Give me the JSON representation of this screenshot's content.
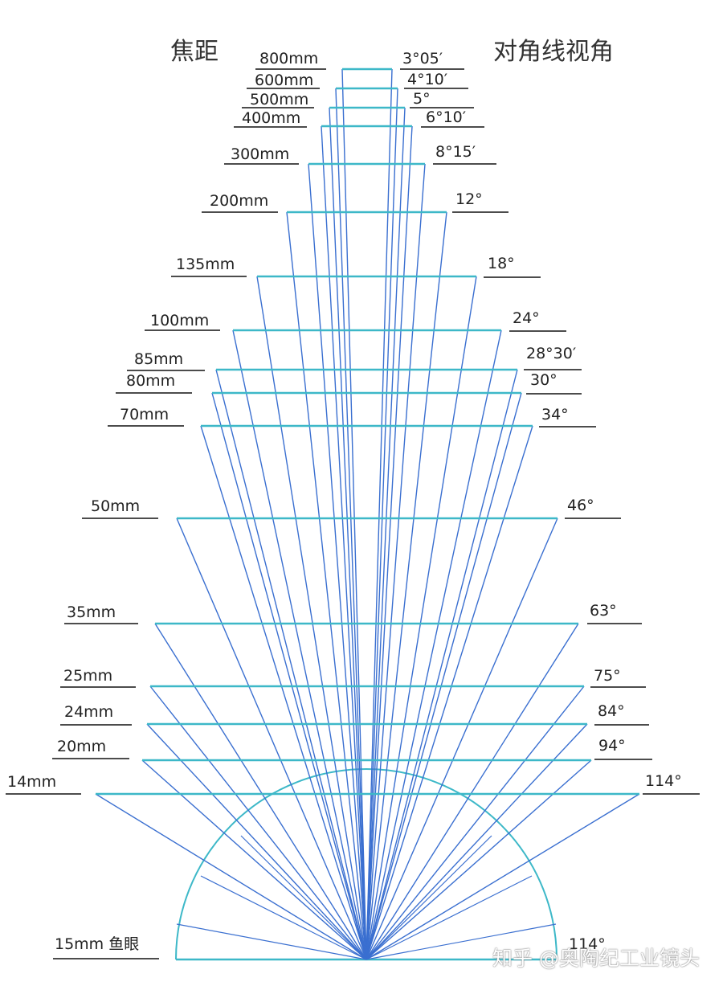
{
  "headers": {
    "focal_length": "焦距",
    "diagonal_angle": "对角线视角"
  },
  "colors": {
    "fan_line": "#3a6fd0",
    "frame": "#3db8c8",
    "underline": "#111111",
    "text": "#222222"
  },
  "lenses": [
    {
      "focal": "800mm",
      "angle": "3°05′"
    },
    {
      "focal": "600mm",
      "angle": "4°10′"
    },
    {
      "focal": "500mm",
      "angle": "5°"
    },
    {
      "focal": "400mm",
      "angle": "6°10′"
    },
    {
      "focal": "300mm",
      "angle": "8°15′"
    },
    {
      "focal": "200mm",
      "angle": "12°"
    },
    {
      "focal": "135mm",
      "angle": "18°"
    },
    {
      "focal": "100mm",
      "angle": "24°"
    },
    {
      "focal": "85mm",
      "angle": "28°30′"
    },
    {
      "focal": "80mm",
      "angle": "30°"
    },
    {
      "focal": "70mm",
      "angle": "34°"
    },
    {
      "focal": "50mm",
      "angle": "46°"
    },
    {
      "focal": "35mm",
      "angle": "63°"
    },
    {
      "focal": "25mm",
      "angle": "75°"
    },
    {
      "focal": "24mm",
      "angle": "84°"
    },
    {
      "focal": "20mm",
      "angle": "94°"
    },
    {
      "focal": "14mm",
      "angle": "114°"
    }
  ],
  "fisheye": {
    "focal": "15mm 鱼眼",
    "angle": "114°"
  },
  "watermark": "知乎 @奥陶纪工业镜头"
}
